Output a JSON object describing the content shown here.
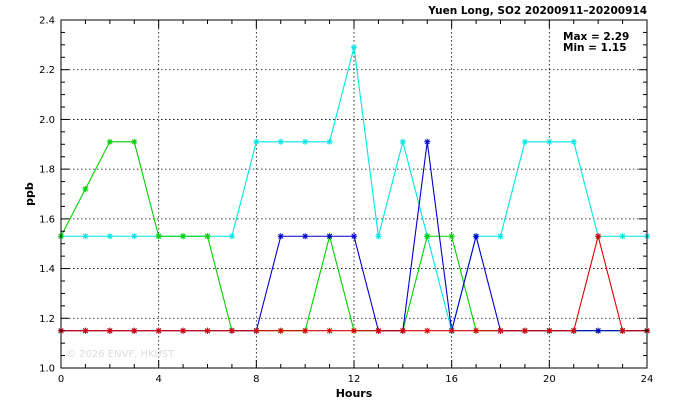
{
  "chart_data": {
    "type": "line",
    "title": "Yuen Long, SO2 20200911–20200914",
    "xlabel": "Hours",
    "ylabel": "ppb",
    "xlim": [
      0,
      24
    ],
    "ylim": [
      1.0,
      2.4
    ],
    "x_ticks": [
      0,
      4,
      8,
      12,
      16,
      20,
      24
    ],
    "y_ticks": [
      1.0,
      1.2,
      1.4,
      1.6,
      1.8,
      2.0,
      2.2,
      2.4
    ],
    "y_tick_labels": [
      "1.0",
      "1.2",
      "1.4",
      "1.6",
      "1.8",
      "2.0",
      "2.2",
      "2.4"
    ],
    "grid": true,
    "stats": {
      "max_label": "Max = 2.29",
      "min_label": "Min = 1.15"
    },
    "watermark": "© 2026  ENVF, HKUST",
    "x": [
      0,
      1,
      2,
      3,
      4,
      5,
      6,
      7,
      8,
      9,
      10,
      11,
      12,
      13,
      14,
      15,
      16,
      17,
      18,
      19,
      20,
      21,
      22,
      23,
      24
    ],
    "series": [
      {
        "color": "#00e5e5",
        "values": [
          1.53,
          1.53,
          1.53,
          1.53,
          1.53,
          1.53,
          1.53,
          1.53,
          1.91,
          1.91,
          1.91,
          1.91,
          2.29,
          1.53,
          1.91,
          1.53,
          1.15,
          1.53,
          1.53,
          1.91,
          1.91,
          1.91,
          1.53,
          1.53,
          1.53
        ]
      },
      {
        "color": "#00d000",
        "values": [
          1.53,
          1.72,
          1.91,
          1.91,
          1.53,
          1.53,
          1.53,
          1.15,
          1.15,
          1.15,
          1.15,
          1.53,
          1.15,
          1.15,
          1.15,
          1.53,
          1.53,
          1.15,
          1.15,
          1.15,
          1.15,
          1.15,
          1.15,
          1.15,
          1.15
        ]
      },
      {
        "color": "#0000cc",
        "values": [
          1.15,
          1.15,
          1.15,
          1.15,
          1.15,
          1.15,
          1.15,
          1.15,
          1.15,
          1.53,
          1.53,
          1.53,
          1.53,
          1.15,
          1.15,
          1.91,
          1.15,
          1.53,
          1.15,
          1.15,
          1.15,
          1.15,
          1.15,
          1.15,
          1.15
        ]
      },
      {
        "color": "#dd0000",
        "values": [
          1.15,
          1.15,
          1.15,
          1.15,
          1.15,
          1.15,
          1.15,
          1.15,
          1.15,
          1.15,
          1.15,
          1.15,
          1.15,
          1.15,
          1.15,
          1.15,
          1.15,
          1.15,
          1.15,
          1.15,
          1.15,
          1.15,
          1.53,
          1.15,
          1.15
        ]
      }
    ]
  }
}
